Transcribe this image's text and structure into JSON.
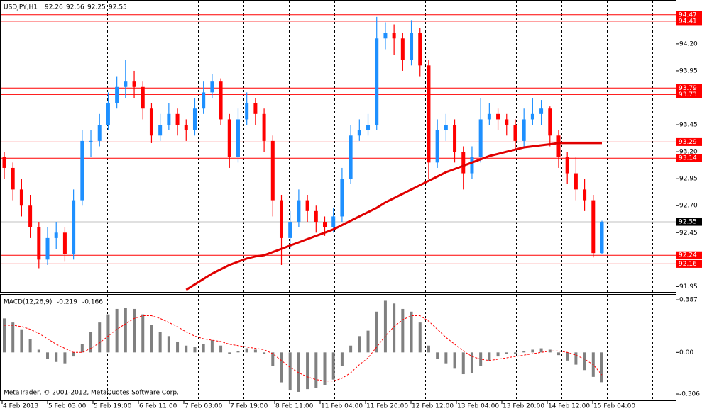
{
  "chart_data": [
    {
      "type": "candlestick",
      "title": "USDJPY,H1",
      "header_values": [
        92.26,
        92.56,
        92.25,
        92.55
      ],
      "up_color": "#1e90ff",
      "down_color": "#ff0000",
      "open": [
        93.15,
        93.05,
        92.85,
        92.7,
        92.5,
        92.2,
        92.4,
        92.45,
        92.25,
        92.75,
        93.3,
        93.3,
        93.45,
        93.65,
        93.8,
        93.85,
        93.8,
        93.6,
        93.35,
        93.45,
        93.55,
        93.45,
        93.4,
        93.6,
        93.75,
        93.85,
        93.5,
        93.15,
        93.5,
        93.65,
        93.55,
        93.3,
        92.75,
        92.4,
        92.55,
        92.75,
        92.65,
        92.55,
        92.5,
        92.6,
        92.95,
        93.35,
        93.4,
        93.45,
        94.25,
        94.3,
        94.25,
        94.05,
        94.3,
        94.0,
        93.1,
        93.4,
        93.45,
        93.2,
        93.0,
        93.15,
        93.5,
        93.55,
        93.5,
        93.45,
        93.3,
        93.5,
        93.55,
        93.6,
        93.35,
        93.15,
        93.0,
        92.85,
        92.75,
        92.26
      ],
      "high": [
        93.2,
        93.1,
        92.95,
        92.8,
        92.55,
        92.5,
        92.55,
        92.5,
        92.85,
        93.4,
        93.4,
        93.55,
        93.75,
        93.9,
        94.05,
        93.95,
        93.85,
        93.65,
        93.55,
        93.65,
        93.6,
        93.5,
        93.7,
        93.85,
        93.92,
        93.88,
        93.55,
        93.6,
        93.75,
        93.7,
        93.6,
        93.35,
        92.8,
        92.65,
        92.85,
        92.8,
        92.7,
        92.6,
        92.68,
        93.05,
        93.45,
        93.5,
        93.55,
        94.45,
        94.4,
        94.38,
        94.3,
        94.42,
        94.35,
        94.05,
        93.5,
        93.55,
        93.5,
        93.25,
        93.25,
        93.7,
        93.65,
        93.6,
        93.55,
        93.5,
        93.6,
        93.7,
        93.68,
        93.62,
        93.4,
        93.2,
        93.15,
        92.95,
        92.8,
        92.56
      ],
      "low": [
        92.95,
        92.75,
        92.6,
        92.4,
        92.12,
        92.15,
        92.3,
        92.18,
        92.2,
        92.7,
        93.15,
        93.25,
        93.4,
        93.6,
        93.7,
        93.7,
        93.5,
        93.28,
        93.3,
        93.4,
        93.35,
        93.3,
        93.35,
        93.55,
        93.7,
        93.45,
        93.05,
        93.1,
        93.45,
        93.45,
        93.2,
        92.6,
        92.15,
        92.3,
        92.5,
        92.55,
        92.45,
        92.42,
        92.45,
        92.55,
        92.9,
        93.3,
        93.35,
        93.4,
        94.15,
        94.1,
        93.95,
        94.0,
        93.9,
        92.95,
        93.05,
        93.3,
        93.1,
        92.85,
        92.95,
        93.1,
        93.45,
        93.4,
        93.35,
        93.22,
        93.25,
        93.45,
        93.45,
        93.25,
        93.05,
        92.9,
        92.75,
        92.65,
        92.22,
        92.25
      ],
      "close": [
        93.05,
        92.85,
        92.7,
        92.5,
        92.2,
        92.4,
        92.45,
        92.25,
        92.75,
        93.3,
        93.3,
        93.45,
        93.65,
        93.8,
        93.85,
        93.8,
        93.6,
        93.35,
        93.45,
        93.55,
        93.45,
        93.4,
        93.6,
        93.75,
        93.85,
        93.5,
        93.15,
        93.5,
        93.65,
        93.55,
        93.3,
        92.75,
        92.4,
        92.55,
        92.75,
        92.65,
        92.55,
        92.5,
        92.6,
        92.95,
        93.35,
        93.4,
        93.45,
        94.25,
        94.3,
        94.25,
        94.05,
        94.3,
        94.0,
        93.1,
        93.4,
        93.45,
        93.2,
        93.0,
        93.15,
        93.5,
        93.55,
        93.5,
        93.45,
        93.3,
        93.5,
        93.55,
        93.6,
        93.35,
        93.15,
        93.0,
        92.85,
        92.75,
        92.26,
        92.55
      ],
      "overlay": {
        "color": "#e00000",
        "values": [
          null,
          null,
          null,
          null,
          null,
          null,
          null,
          null,
          null,
          null,
          null,
          null,
          null,
          null,
          null,
          null,
          null,
          null,
          null,
          null,
          null,
          91.92,
          91.97,
          92.02,
          92.07,
          92.11,
          92.15,
          92.18,
          92.21,
          92.23,
          92.24,
          92.27,
          92.3,
          92.33,
          92.36,
          92.39,
          92.42,
          92.45,
          92.48,
          92.52,
          92.56,
          92.6,
          92.64,
          92.68,
          92.73,
          92.77,
          92.81,
          92.85,
          92.89,
          92.93,
          92.97,
          93.01,
          93.04,
          93.07,
          93.1,
          93.13,
          93.16,
          93.18,
          93.2,
          93.22,
          93.24,
          93.25,
          93.26,
          93.27,
          93.28,
          93.28,
          93.28,
          93.28,
          93.28,
          93.28
        ]
      },
      "levels": [
        94.47,
        94.41,
        93.79,
        93.73,
        93.29,
        93.14,
        92.24,
        92.16
      ],
      "level_color": "#ff0000",
      "current_price": 92.55,
      "ylim": [
        91.9,
        94.6
      ],
      "yticks": [
        {
          "value": 94.2,
          "label": "94.20"
        },
        93.95,
        93.45,
        {
          "value": 93.2,
          "label": "93.20"
        },
        92.95,
        {
          "value": 92.7,
          "label": "92.70"
        },
        92.45,
        91.95
      ],
      "grid": true
    },
    {
      "type": "macd",
      "title": "MACD(12,26,9)",
      "header_values": [
        -0.219,
        -0.166
      ],
      "histogram_color": "#808080",
      "signal_color": "#ff0000",
      "values": [
        0.25,
        0.22,
        0.17,
        0.1,
        0.02,
        -0.05,
        -0.07,
        -0.08,
        -0.03,
        0.06,
        0.15,
        0.22,
        0.28,
        0.32,
        0.33,
        0.32,
        0.28,
        0.2,
        0.15,
        0.12,
        0.08,
        0.05,
        0.04,
        0.06,
        0.09,
        0.05,
        -0.01,
        0.01,
        0.03,
        0.02,
        -0.01,
        -0.1,
        -0.22,
        -0.28,
        -0.29,
        -0.27,
        -0.26,
        -0.24,
        -0.2,
        -0.1,
        0.05,
        0.12,
        0.16,
        0.3,
        0.38,
        0.36,
        0.32,
        0.3,
        0.22,
        0.05,
        -0.05,
        -0.08,
        -0.12,
        -0.16,
        -0.15,
        -0.1,
        -0.06,
        -0.03,
        -0.01,
        -0.01,
        0.01,
        0.02,
        0.03,
        0.02,
        -0.02,
        -0.06,
        -0.09,
        -0.13,
        -0.18,
        -0.219
      ],
      "signal": [
        0.2,
        0.2,
        0.19,
        0.17,
        0.14,
        0.1,
        0.06,
        0.03,
        0.0,
        0.0,
        0.03,
        0.07,
        0.12,
        0.17,
        0.21,
        0.25,
        0.27,
        0.27,
        0.25,
        0.22,
        0.19,
        0.15,
        0.12,
        0.1,
        0.09,
        0.08,
        0.06,
        0.05,
        0.04,
        0.03,
        0.02,
        -0.01,
        -0.06,
        -0.11,
        -0.15,
        -0.18,
        -0.2,
        -0.21,
        -0.21,
        -0.19,
        -0.15,
        -0.09,
        -0.04,
        0.04,
        0.12,
        0.19,
        0.24,
        0.27,
        0.27,
        0.23,
        0.17,
        0.11,
        0.06,
        0.01,
        -0.03,
        -0.05,
        -0.06,
        -0.05,
        -0.04,
        -0.03,
        -0.02,
        -0.01,
        0.0,
        0.01,
        0.01,
        0.0,
        -0.02,
        -0.05,
        -0.09,
        -0.166
      ],
      "ylim": [
        -0.358,
        0.424
      ],
      "yticks": [
        0.387,
        {
          "value": 0,
          "label": "0.00"
        },
        -0.306
      ],
      "x_labels": [
        "4 Feb 2013",
        "5 Feb 03:00",
        "5 Feb 19:00",
        "6 Feb 11:00",
        "7 Feb 03:00",
        "7 Feb 19:00",
        "8 Feb 11:00",
        "11 Feb 04:00",
        "11 Feb 20:00",
        "12 Feb 12:00",
        "13 Feb 04:00",
        "13 Feb 20:00",
        "14 Feb 12:00",
        "15 Feb 04:00"
      ],
      "annotation": "MetaTrader, © 2001-2012, MetaQuotes Software Corp."
    }
  ]
}
